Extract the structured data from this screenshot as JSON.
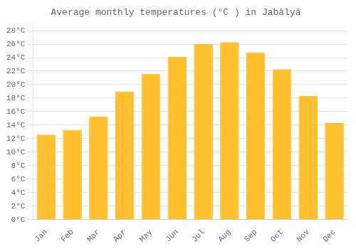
{
  "chart_data": {
    "type": "bar",
    "title": "Average monthly temperatures (°C ) in Jabālyā",
    "categories": [
      "Jan",
      "Feb",
      "Mar",
      "Apr",
      "May",
      "Jun",
      "Jul",
      "Aug",
      "Sep",
      "Oct",
      "Nov",
      "Dec"
    ],
    "values": [
      12.6,
      13.3,
      15.3,
      19.0,
      21.6,
      24.1,
      26.0,
      26.3,
      24.8,
      22.3,
      18.3,
      14.3
    ],
    "color": "#FFC030",
    "ylim": [
      0,
      29
    ],
    "yticks": [
      {
        "value": 0,
        "label": "0°C"
      },
      {
        "value": 2,
        "label": "2°C"
      },
      {
        "value": 4,
        "label": "4°C"
      },
      {
        "value": 6,
        "label": "6°C"
      },
      {
        "value": 8,
        "label": "8°C"
      },
      {
        "value": 10,
        "label": "10°C"
      },
      {
        "value": 12,
        "label": "12°C"
      },
      {
        "value": 14,
        "label": "14°C"
      },
      {
        "value": 16,
        "label": "16°C"
      },
      {
        "value": 18,
        "label": "18°C"
      },
      {
        "value": 20,
        "label": "20°C"
      },
      {
        "value": 22,
        "label": "22°C"
      },
      {
        "value": 24,
        "label": "24°C"
      },
      {
        "value": 26,
        "label": "26°C"
      },
      {
        "value": 28,
        "label": "28°C"
      }
    ],
    "grid": true
  }
}
